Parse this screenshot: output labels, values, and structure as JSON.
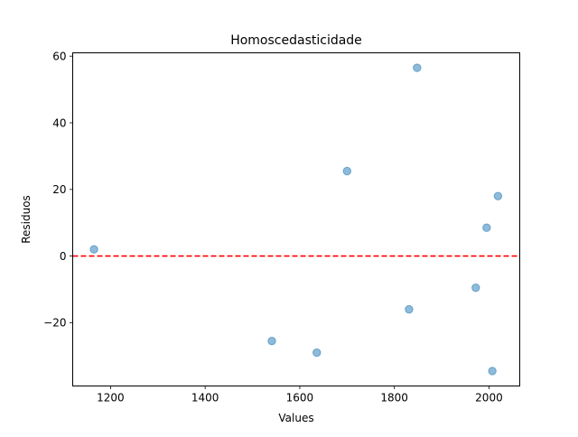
{
  "chart_data": {
    "type": "scatter",
    "title": "Homoscedasticidade",
    "xlabel": "Values",
    "ylabel": "Residuos",
    "xlim": [
      1120,
      2065
    ],
    "ylim": [
      -39,
      61
    ],
    "x_ticks": [
      1200,
      1400,
      1600,
      1800,
      2000
    ],
    "y_ticks": [
      -20,
      0,
      20,
      40,
      60
    ],
    "x_tick_labels": [
      "1200",
      "1400",
      "1600",
      "1800",
      "2000"
    ],
    "y_tick_labels": [
      "−20",
      "0",
      "20",
      "40",
      "60"
    ],
    "grid": false,
    "points": [
      {
        "x": 1165,
        "y": 2
      },
      {
        "x": 1541,
        "y": -25.5
      },
      {
        "x": 1636,
        "y": -29
      },
      {
        "x": 1700,
        "y": 25.5
      },
      {
        "x": 1831,
        "y": -16
      },
      {
        "x": 1848,
        "y": 56.5
      },
      {
        "x": 1972,
        "y": -9.5
      },
      {
        "x": 1995,
        "y": 8.5
      },
      {
        "x": 2007,
        "y": -34.5
      },
      {
        "x": 2019,
        "y": 18
      }
    ],
    "point_color": "#1f77b4",
    "reference_line": {
      "y": 0,
      "color": "#ff0000",
      "style": "dashed"
    }
  }
}
